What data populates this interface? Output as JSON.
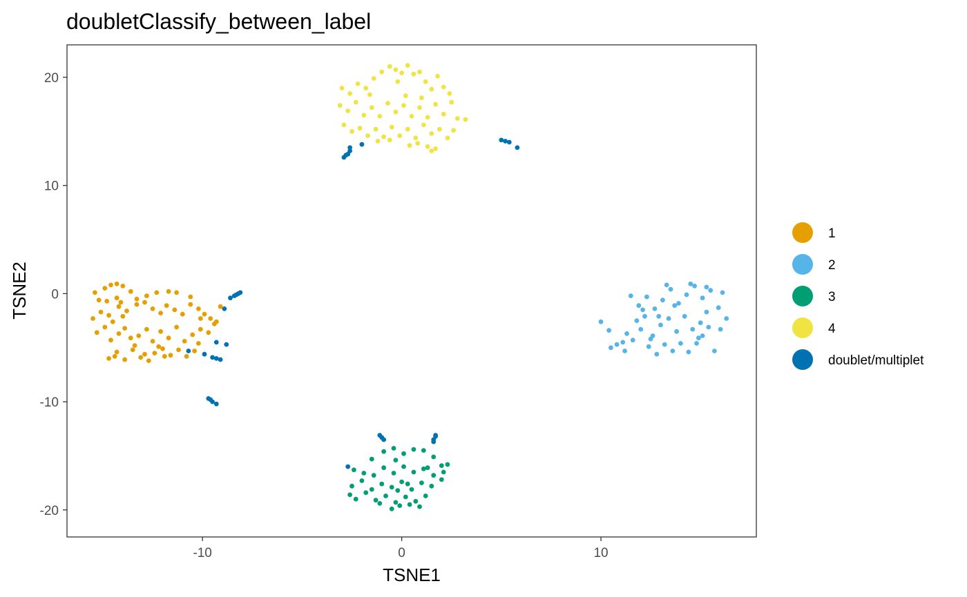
{
  "chart_data": {
    "type": "scatter",
    "title": "doubletClassify_between_label",
    "xlabel": "TSNE1",
    "ylabel": "TSNE2",
    "xlim": [
      -16.8,
      17.8
    ],
    "ylim": [
      -22.5,
      23
    ],
    "xticks": [
      -10,
      0,
      10
    ],
    "xtick_labels": [
      "-10",
      "0",
      "10"
    ],
    "yticks": [
      -20,
      -10,
      0,
      10,
      20
    ],
    "ytick_labels": [
      "-20",
      "-10",
      "0",
      "10",
      "20"
    ],
    "grid": false,
    "legend_position": "right",
    "series": [
      {
        "name": "1",
        "color": "#E69F00",
        "points": [
          [
            -15.4,
            0.1
          ],
          [
            -14.9,
            0.5
          ],
          [
            -14.6,
            0.8
          ],
          [
            -14.3,
            0.9
          ],
          [
            -14,
            0.7
          ],
          [
            -13.6,
            0.2
          ],
          [
            -15.2,
            -0.6
          ],
          [
            -14.8,
            -0.7
          ],
          [
            -14.3,
            -0.4
          ],
          [
            -14.1,
            -0.8
          ],
          [
            -13.3,
            -0.5
          ],
          [
            -12.8,
            -0.2
          ],
          [
            -12.3,
            0.1
          ],
          [
            -11.7,
            0.2
          ],
          [
            -11.3,
            0.1
          ],
          [
            -10.6,
            -0.3
          ],
          [
            -15.5,
            -2.3
          ],
          [
            -15.1,
            -1.7
          ],
          [
            -14.7,
            -2
          ],
          [
            -14.5,
            -2.6
          ],
          [
            -14.2,
            -1.2
          ],
          [
            -14,
            -2.1
          ],
          [
            -13.8,
            -1.6
          ],
          [
            -13.3,
            -1
          ],
          [
            -12.9,
            -0.8
          ],
          [
            -12.5,
            -1.4
          ],
          [
            -12.1,
            -1.8
          ],
          [
            -11.8,
            -1.1
          ],
          [
            -11.4,
            -1.5
          ],
          [
            -11,
            -1.9
          ],
          [
            -10.6,
            -1
          ],
          [
            -10.2,
            -1.4
          ],
          [
            -9.9,
            -1.9
          ],
          [
            -9.6,
            -2.3
          ],
          [
            -9.3,
            -2.6
          ],
          [
            -9.1,
            -1.2
          ],
          [
            -15.3,
            -3.6
          ],
          [
            -14.9,
            -3.1
          ],
          [
            -14.6,
            -4.3
          ],
          [
            -14.2,
            -3.7
          ],
          [
            -13.9,
            -3.2
          ],
          [
            -13.6,
            -4.1
          ],
          [
            -13.2,
            -3.9
          ],
          [
            -12.8,
            -3.3
          ],
          [
            -12.5,
            -4.4
          ],
          [
            -12.1,
            -3.5
          ],
          [
            -11.7,
            -4.1
          ],
          [
            -11.3,
            -3.1
          ],
          [
            -10.9,
            -4.4
          ],
          [
            -10.5,
            -3.8
          ],
          [
            -10.1,
            -3.3
          ],
          [
            -9.7,
            -3.6
          ],
          [
            -9.4,
            -2.8
          ],
          [
            -14.7,
            -6
          ],
          [
            -14.3,
            -5.4
          ],
          [
            -13.9,
            -6.1
          ],
          [
            -13.5,
            -5.2
          ],
          [
            -13.1,
            -5.9
          ],
          [
            -12.7,
            -6.2
          ],
          [
            -12.4,
            -5.5
          ],
          [
            -12,
            -5.1
          ],
          [
            -11.6,
            -5.7
          ],
          [
            -11.2,
            -5.2
          ],
          [
            -10.8,
            -5.8
          ],
          [
            -10.4,
            -5.3
          ],
          [
            -13.4,
            -4.8
          ],
          [
            -12.9,
            -5.6
          ],
          [
            -12.2,
            -4.9
          ],
          [
            -11.9,
            -5.8
          ],
          [
            -10.2,
            -4.6
          ],
          [
            -14.4,
            -5.8
          ],
          [
            -10.1,
            -2.3
          ]
        ]
      },
      {
        "name": "2",
        "color": "#56B4E9",
        "points": [
          [
            10,
            -2.6
          ],
          [
            10.4,
            -3.4
          ],
          [
            10.8,
            -4.7
          ],
          [
            11.2,
            -5.3
          ],
          [
            11.6,
            -4.3
          ],
          [
            12,
            -3.3
          ],
          [
            12.4,
            -4.9
          ],
          [
            12.8,
            -5.6
          ],
          [
            13.2,
            -4.7
          ],
          [
            13.6,
            -5.3
          ],
          [
            14,
            -4.6
          ],
          [
            14.4,
            -5.4
          ],
          [
            14.8,
            -4.6
          ],
          [
            15.1,
            -3.9
          ],
          [
            15.4,
            -3.1
          ],
          [
            15.7,
            -5.3
          ],
          [
            16,
            -3.3
          ],
          [
            16.3,
            -2.3
          ],
          [
            11.5,
            -0.2
          ],
          [
            11.9,
            -1.1
          ],
          [
            12.3,
            -0.3
          ],
          [
            12.7,
            -1.4
          ],
          [
            13.1,
            -0.6
          ],
          [
            13.5,
            0.4
          ],
          [
            13.9,
            -0.9
          ],
          [
            14.3,
            -0.1
          ],
          [
            14.7,
            0.7
          ],
          [
            15.1,
            -0.4
          ],
          [
            15.5,
            0.3
          ],
          [
            15.9,
            -1.3
          ],
          [
            16.1,
            0.1
          ],
          [
            11.3,
            -3.7
          ],
          [
            11.8,
            -2.5
          ],
          [
            12.2,
            -2.1
          ],
          [
            12.6,
            -3.9
          ],
          [
            13,
            -2.9
          ],
          [
            13.4,
            -2.3
          ],
          [
            13.8,
            -3.5
          ],
          [
            14.2,
            -2.1
          ],
          [
            14.6,
            -3.3
          ],
          [
            15,
            -2.7
          ],
          [
            15.3,
            -1.7
          ],
          [
            12.1,
            -1.5
          ],
          [
            12.9,
            -2.1
          ],
          [
            13.7,
            -1.1
          ],
          [
            14.9,
            -4.1
          ],
          [
            11.1,
            -4.5
          ],
          [
            10.5,
            -5
          ],
          [
            13.3,
            0.8
          ],
          [
            14.5,
            0.9
          ],
          [
            15.3,
            0.6
          ],
          [
            12.5,
            -4.2
          ]
        ]
      },
      {
        "name": "3",
        "color": "#009E73",
        "points": [
          [
            -1.5,
            -15.3
          ],
          [
            -0.9,
            -14.6
          ],
          [
            -0.4,
            -14.3
          ],
          [
            0.1,
            -14.8
          ],
          [
            0.6,
            -14.4
          ],
          [
            1.1,
            -14.5
          ],
          [
            1.6,
            -15.1
          ],
          [
            2,
            -15.9
          ],
          [
            2.3,
            -15.8
          ],
          [
            -2.4,
            -16.3
          ],
          [
            -1.9,
            -16.6
          ],
          [
            -1.4,
            -16.8
          ],
          [
            -0.9,
            -16.1
          ],
          [
            -0.4,
            -16.6
          ],
          [
            0.1,
            -16
          ],
          [
            0.6,
            -16.5
          ],
          [
            1.1,
            -16.2
          ],
          [
            1.6,
            -16.8
          ],
          [
            2.1,
            -16.5
          ],
          [
            -2.5,
            -17.8
          ],
          [
            -2,
            -17.3
          ],
          [
            -1.5,
            -18.1
          ],
          [
            -1,
            -17.6
          ],
          [
            -0.5,
            -17.9
          ],
          [
            0,
            -17.4
          ],
          [
            0.5,
            -18.1
          ],
          [
            1,
            -17.5
          ],
          [
            1.5,
            -17.8
          ],
          [
            2,
            -17.2
          ],
          [
            -2.6,
            -18.6
          ],
          [
            -2.3,
            -19
          ],
          [
            -1.8,
            -18.4
          ],
          [
            -1.3,
            -19.1
          ],
          [
            -0.8,
            -18.7
          ],
          [
            -0.3,
            -19.3
          ],
          [
            0.2,
            -18.8
          ],
          [
            0.7,
            -19.2
          ],
          [
            1.2,
            -18.7
          ],
          [
            -1.1,
            -19.4
          ],
          [
            -0.5,
            -19.9
          ],
          [
            -0.1,
            -19.6
          ],
          [
            0.4,
            -19.5
          ],
          [
            0.9,
            -19.7
          ],
          [
            -0.2,
            -18.2
          ],
          [
            0.3,
            -17.6
          ],
          [
            1.3,
            -16.1
          ],
          [
            -0.3,
            -15.4
          ]
        ]
      },
      {
        "name": "4",
        "color": "#F0E442",
        "points": [
          [
            -3,
            19
          ],
          [
            -2.6,
            18.5
          ],
          [
            -2.2,
            19.4
          ],
          [
            -1.8,
            19
          ],
          [
            -1.4,
            19.9
          ],
          [
            -1,
            20.5
          ],
          [
            -0.6,
            21
          ],
          [
            -0.3,
            20.7
          ],
          [
            0,
            20.4
          ],
          [
            0.3,
            21.1
          ],
          [
            0.6,
            20.3
          ],
          [
            0.9,
            20.5
          ],
          [
            1.2,
            19.6
          ],
          [
            1.5,
            18.9
          ],
          [
            1.8,
            20.1
          ],
          [
            2.1,
            19.1
          ],
          [
            -3.1,
            17.4
          ],
          [
            -2.7,
            16.9
          ],
          [
            -2.3,
            17.7
          ],
          [
            -1.9,
            16.5
          ],
          [
            -1.5,
            17.2
          ],
          [
            -1.1,
            16.4
          ],
          [
            -0.7,
            17.6
          ],
          [
            -0.3,
            16.8
          ],
          [
            0.1,
            17.4
          ],
          [
            0.5,
            16.4
          ],
          [
            0.9,
            17.2
          ],
          [
            1.3,
            16.3
          ],
          [
            1.7,
            17.5
          ],
          [
            2.1,
            16.6
          ],
          [
            2.5,
            17.7
          ],
          [
            2.8,
            16.2
          ],
          [
            3.2,
            16.1
          ],
          [
            -2.9,
            15.6
          ],
          [
            -2.5,
            15
          ],
          [
            -2.1,
            15.3
          ],
          [
            -1.7,
            14.6
          ],
          [
            -1.3,
            15.2
          ],
          [
            -0.9,
            14.5
          ],
          [
            -0.5,
            15.4
          ],
          [
            -0.1,
            14.6
          ],
          [
            0.3,
            15.2
          ],
          [
            0.7,
            14.4
          ],
          [
            1.1,
            15.6
          ],
          [
            1.5,
            14.8
          ],
          [
            1.9,
            15.2
          ],
          [
            2.3,
            14.4
          ],
          [
            2.6,
            15.1
          ],
          [
            -1.2,
            14.1
          ],
          [
            -0.6,
            14.2
          ],
          [
            0.4,
            13.7
          ],
          [
            0.8,
            13.9
          ],
          [
            1.3,
            13.6
          ],
          [
            1.7,
            13.4
          ],
          [
            1.5,
            13.2
          ],
          [
            -1.6,
            18.4
          ],
          [
            -0.2,
            19.6
          ],
          [
            1,
            18.1
          ],
          [
            2.4,
            18.5
          ],
          [
            0.2,
            18.3
          ]
        ]
      },
      {
        "name": "doublet/multiplet",
        "color": "#0072B2",
        "points": [
          [
            -8.1,
            0.1
          ],
          [
            -8.2,
            0
          ],
          [
            -8.3,
            -0.1
          ],
          [
            -8.4,
            -0.2
          ],
          [
            -8.6,
            -0.4
          ],
          [
            -8.9,
            -1.4
          ],
          [
            -9.3,
            -4.5
          ],
          [
            -9.5,
            -5.9
          ],
          [
            -9.3,
            -6
          ],
          [
            -9.1,
            -6.1
          ],
          [
            -9.9,
            -5.6
          ],
          [
            -10.7,
            -5.3
          ],
          [
            -9.7,
            -9.7
          ],
          [
            -9.6,
            -9.8
          ],
          [
            -9.5,
            -10
          ],
          [
            -9.3,
            -10.2
          ],
          [
            -2.9,
            12.6
          ],
          [
            -2.8,
            12.8
          ],
          [
            -2.7,
            12.9
          ],
          [
            -2.6,
            13.2
          ],
          [
            -2.6,
            13.5
          ],
          [
            -2,
            13.8
          ],
          [
            5,
            14.2
          ],
          [
            5.2,
            14.1
          ],
          [
            5.4,
            14
          ],
          [
            5.8,
            13.5
          ],
          [
            -1.1,
            -13.1
          ],
          [
            -1,
            -13.3
          ],
          [
            -0.9,
            -13.5
          ],
          [
            -2.7,
            -16
          ],
          [
            1.7,
            -13.2
          ],
          [
            1.7,
            -13.1
          ],
          [
            1.6,
            -13.5
          ],
          [
            1.6,
            -13.7
          ],
          [
            -8.8,
            -4.7
          ]
        ]
      }
    ]
  }
}
